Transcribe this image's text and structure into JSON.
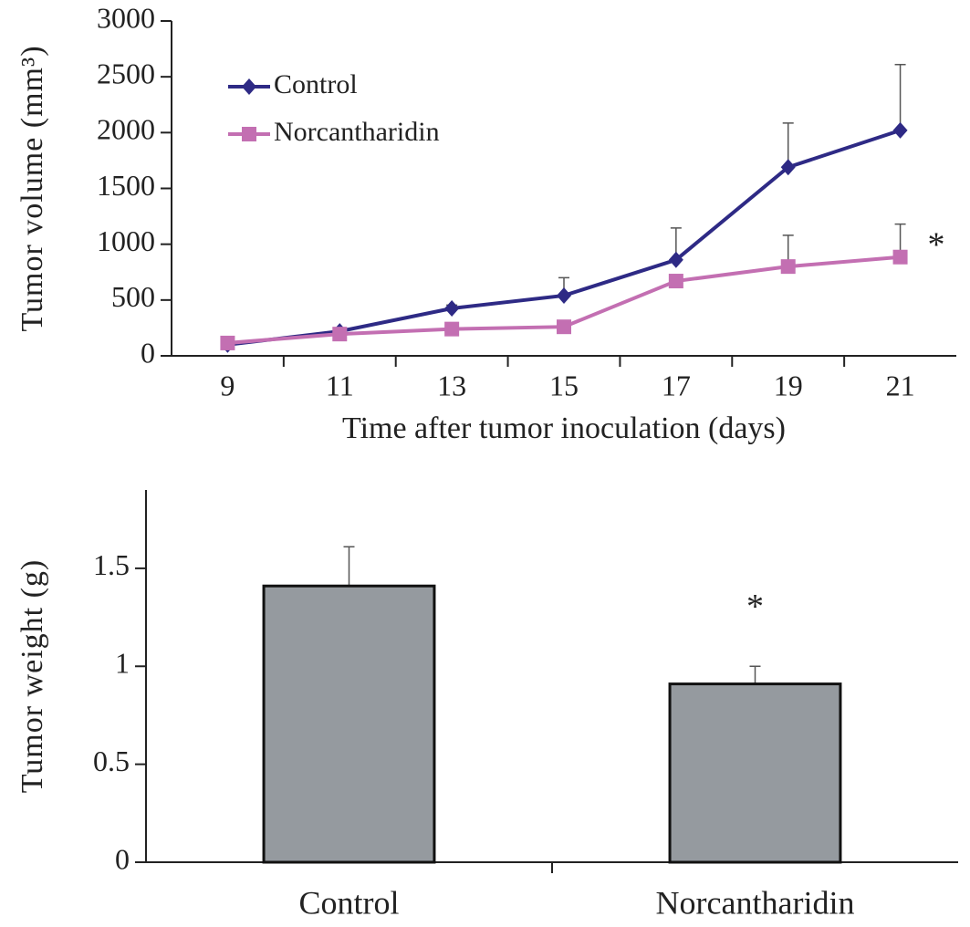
{
  "chart_data": [
    {
      "type": "line",
      "ylabel": "Tumor volume (mm³)",
      "xlabel": "Time after tumor inoculation (days)",
      "categories": [
        "9",
        "11",
        "13",
        "15",
        "17",
        "19",
        "21"
      ],
      "series": [
        {
          "name": "Control",
          "color": "#2e2a85",
          "marker": "diamond",
          "values": [
            100,
            220,
            425,
            540,
            860,
            1690,
            2020
          ],
          "errors": [
            20,
            30,
            30,
            160,
            285,
            395,
            590
          ]
        },
        {
          "name": "Norcantharidin",
          "color": "#c36fb2",
          "marker": "square",
          "values": [
            115,
            195,
            240,
            260,
            670,
            800,
            885
          ],
          "errors": [
            20,
            30,
            30,
            30,
            30,
            280,
            295
          ]
        }
      ],
      "ylim": [
        0,
        3000
      ],
      "yticks": [
        0,
        500,
        1000,
        1500,
        2000,
        2500,
        3000
      ],
      "annotation": "*"
    },
    {
      "type": "bar",
      "ylabel": "Tumor weight (g)",
      "categories": [
        "Control",
        "Norcantharidin"
      ],
      "values": [
        1.41,
        0.91
      ],
      "errors": [
        0.2,
        0.09
      ],
      "color": "#959a9f",
      "ylim": [
        0,
        1.9
      ],
      "yticks": [
        0,
        0.5,
        1,
        1.5
      ],
      "annotation": "*"
    }
  ]
}
